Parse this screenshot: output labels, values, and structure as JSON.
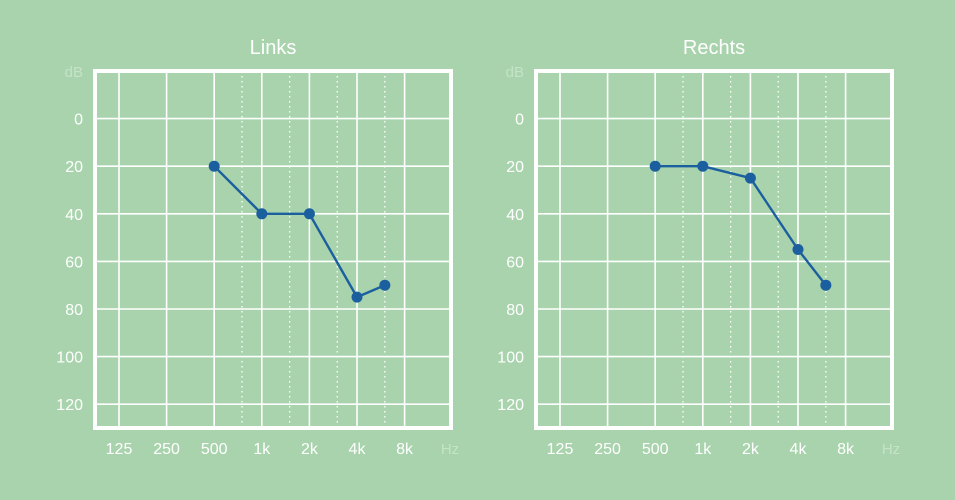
{
  "colors": {
    "background": "#a8d3ac",
    "grid": "#ffffff",
    "frame": "#ffffff",
    "series": "#1c5f9e",
    "text": "#ffffff",
    "unit_label": "#c4e4c6"
  },
  "chart_data": [
    {
      "type": "line",
      "title": "Links",
      "xlabel": "Hz",
      "ylabel": "dB",
      "x_ticks": [
        "125",
        "250",
        "500",
        "1k",
        "2k",
        "4k",
        "8k"
      ],
      "y_ticks": [
        0,
        20,
        40,
        60,
        80,
        100,
        120
      ],
      "ylim": [
        -20,
        130
      ],
      "y_inverted": true,
      "x_scale": "log2",
      "grid": true,
      "series": [
        {
          "x": [
            "500",
            "1k",
            "2k",
            "4k",
            "6k"
          ],
          "values": [
            20,
            40,
            40,
            75,
            70
          ]
        }
      ]
    },
    {
      "type": "line",
      "title": "Rechts",
      "xlabel": "Hz",
      "ylabel": "dB",
      "x_ticks": [
        "125",
        "250",
        "500",
        "1k",
        "2k",
        "4k",
        "8k"
      ],
      "y_ticks": [
        0,
        20,
        40,
        60,
        80,
        100,
        120
      ],
      "ylim": [
        -20,
        130
      ],
      "y_inverted": true,
      "x_scale": "log2",
      "grid": true,
      "series": [
        {
          "x": [
            "500",
            "1k",
            "2k",
            "4k",
            "6k"
          ],
          "values": [
            20,
            20,
            25,
            55,
            70
          ]
        }
      ]
    }
  ]
}
